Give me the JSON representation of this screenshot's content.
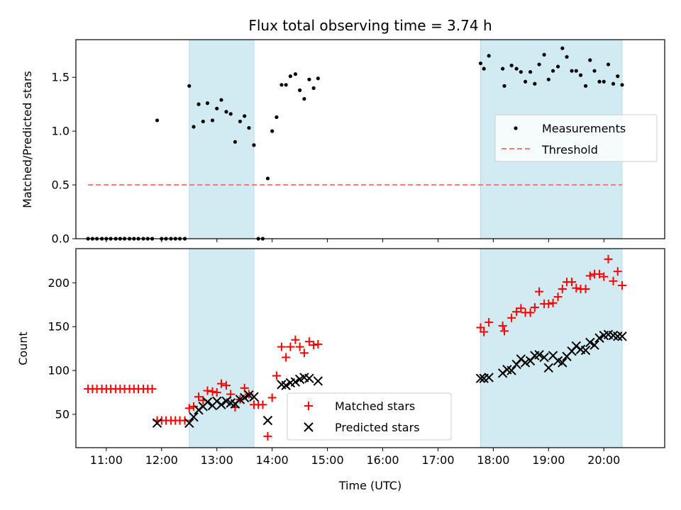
{
  "chart_data": [
    {
      "type": "scatter",
      "title": "Flux total observing time = 3.74 h",
      "ylabel": "Matched/Predicted stars",
      "ylim": [
        0,
        1.85
      ],
      "yticks": [
        "0.0",
        "0.5",
        "1.0",
        "1.5"
      ],
      "xlim": [
        10.45,
        21.1
      ],
      "xticks": [
        "11:00",
        "12:00",
        "13:00",
        "14:00",
        "15:00",
        "16:00",
        "17:00",
        "18:00",
        "19:00",
        "20:00"
      ],
      "shaded_intervals": [
        [
          12.5,
          13.67
        ],
        [
          17.77,
          20.33
        ]
      ],
      "shade_color": "#add8e6",
      "legend_position": "center-right",
      "series": [
        {
          "name": "Measurements",
          "marker": "dot",
          "color": "#000000",
          "x": [
            10.67,
            10.75,
            10.83,
            10.92,
            11.0,
            11.08,
            11.17,
            11.25,
            11.33,
            11.42,
            11.5,
            11.58,
            11.67,
            11.75,
            11.83,
            11.92,
            12.0,
            12.08,
            12.17,
            12.25,
            12.33,
            12.42,
            12.5,
            12.58,
            12.67,
            12.75,
            12.83,
            12.92,
            13.0,
            13.08,
            13.17,
            13.25,
            13.33,
            13.42,
            13.5,
            13.58,
            13.67,
            13.75,
            13.83,
            13.92,
            14.0,
            14.08,
            14.17,
            14.25,
            14.33,
            14.42,
            14.5,
            14.58,
            14.67,
            14.75,
            14.83,
            17.77,
            17.83,
            17.92,
            18.17,
            18.2,
            18.33,
            18.42,
            18.5,
            18.58,
            18.67,
            18.75,
            18.83,
            18.92,
            19.0,
            19.08,
            19.17,
            19.25,
            19.33,
            19.42,
            19.5,
            19.58,
            19.67,
            19.75,
            19.83,
            19.92,
            20.0,
            20.08,
            20.17,
            20.25,
            20.33
          ],
          "y": [
            0.0,
            0.0,
            0.0,
            0.0,
            0.0,
            0.0,
            0.0,
            0.0,
            0.0,
            0.0,
            0.0,
            0.0,
            0.0,
            0.0,
            0.0,
            1.1,
            0.0,
            0.0,
            0.0,
            0.0,
            0.0,
            0.0,
            1.42,
            1.04,
            1.25,
            1.09,
            1.26,
            1.1,
            1.21,
            1.29,
            1.18,
            1.16,
            0.9,
            1.09,
            1.14,
            1.03,
            0.87,
            0.0,
            0.0,
            0.56,
            1.0,
            1.13,
            1.43,
            1.43,
            1.51,
            1.53,
            1.38,
            1.3,
            1.48,
            1.4,
            1.49,
            1.63,
            1.58,
            1.7,
            1.58,
            1.42,
            1.61,
            1.58,
            1.55,
            1.46,
            1.55,
            1.44,
            1.62,
            1.71,
            1.48,
            1.56,
            1.6,
            1.77,
            1.69,
            1.56,
            1.56,
            1.52,
            1.42,
            1.66,
            1.56,
            1.46,
            1.46,
            1.62,
            1.44,
            1.51,
            1.43
          ]
        },
        {
          "name": "Threshold",
          "marker": "dashed-line",
          "color": "#ff7777",
          "x": [
            10.67,
            20.33
          ],
          "y": [
            0.5,
            0.5
          ]
        }
      ]
    },
    {
      "type": "scatter",
      "xlabel": "Time (UTC)",
      "ylabel": "Count",
      "ylim": [
        12,
        239
      ],
      "yticks": [
        "50",
        "100",
        "150",
        "200"
      ],
      "xlim": [
        10.45,
        21.1
      ],
      "xticks": [
        "11:00",
        "12:00",
        "13:00",
        "14:00",
        "15:00",
        "16:00",
        "17:00",
        "18:00",
        "19:00",
        "20:00"
      ],
      "shaded_intervals": [
        [
          12.5,
          13.67
        ],
        [
          17.77,
          20.33
        ]
      ],
      "shade_color": "#add8e6",
      "legend_position": "lower-center",
      "series": [
        {
          "name": "Matched stars",
          "marker": "plus",
          "color": "#ff0000",
          "x": [
            10.67,
            10.75,
            10.83,
            10.92,
            11.0,
            11.08,
            11.17,
            11.25,
            11.33,
            11.42,
            11.5,
            11.58,
            11.67,
            11.75,
            11.83,
            11.92,
            12.0,
            12.08,
            12.17,
            12.25,
            12.33,
            12.42,
            12.5,
            12.58,
            12.67,
            12.75,
            12.83,
            12.92,
            13.0,
            13.08,
            13.17,
            13.25,
            13.33,
            13.42,
            13.5,
            13.58,
            13.67,
            13.75,
            13.83,
            13.92,
            14.0,
            14.08,
            14.17,
            14.25,
            14.33,
            14.42,
            14.5,
            14.58,
            14.67,
            14.75,
            14.83,
            17.77,
            17.83,
            17.92,
            18.17,
            18.2,
            18.33,
            18.42,
            18.5,
            18.58,
            18.67,
            18.75,
            18.83,
            18.92,
            19.0,
            19.08,
            19.17,
            19.25,
            19.33,
            19.42,
            19.5,
            19.58,
            19.67,
            19.75,
            19.83,
            19.92,
            20.0,
            20.08,
            20.17,
            20.25,
            20.33
          ],
          "y": [
            79,
            79,
            79,
            79,
            79,
            79,
            79,
            79,
            79,
            79,
            79,
            79,
            79,
            79,
            79,
            43,
            43,
            43,
            43,
            43,
            43,
            43,
            57,
            59,
            70,
            66,
            77,
            76,
            75,
            85,
            83,
            73,
            58,
            67,
            80,
            73,
            61,
            61,
            61,
            25,
            69,
            94,
            127,
            115,
            127,
            135,
            127,
            120,
            133,
            129,
            130,
            149,
            144,
            155,
            151,
            145,
            160,
            167,
            171,
            166,
            166,
            172,
            190,
            176,
            176,
            177,
            184,
            193,
            201,
            201,
            194,
            193,
            193,
            208,
            210,
            210,
            207,
            227,
            202,
            213,
            197
          ]
        },
        {
          "name": "Predicted stars",
          "marker": "x",
          "color": "#000000",
          "x": [
            11.92,
            12.5,
            12.58,
            12.67,
            12.75,
            12.83,
            12.92,
            13.0,
            13.08,
            13.17,
            13.25,
            13.33,
            13.42,
            13.5,
            13.58,
            13.67,
            13.92,
            14.17,
            14.25,
            14.33,
            14.42,
            14.5,
            14.58,
            14.67,
            14.83,
            17.77,
            17.83,
            17.92,
            18.17,
            18.25,
            18.33,
            18.42,
            18.5,
            18.58,
            18.67,
            18.75,
            18.83,
            18.92,
            19.0,
            19.08,
            19.17,
            19.25,
            19.33,
            19.42,
            19.5,
            19.58,
            19.67,
            19.75,
            19.83,
            19.92,
            20.0,
            20.08,
            20.17,
            20.25,
            20.33
          ],
          "y": [
            40,
            40,
            47,
            55,
            59,
            64,
            60,
            65,
            61,
            65,
            63,
            62,
            67,
            69,
            72,
            70,
            43,
            84,
            83,
            86,
            87,
            90,
            92,
            91,
            88,
            91,
            91,
            92,
            97,
            101,
            100,
            107,
            113,
            109,
            111,
            117,
            118,
            115,
            103,
            117,
            111,
            109,
            116,
            122,
            128,
            124,
            123,
            132,
            129,
            137,
            140,
            141,
            140,
            139,
            139
          ]
        }
      ]
    }
  ]
}
